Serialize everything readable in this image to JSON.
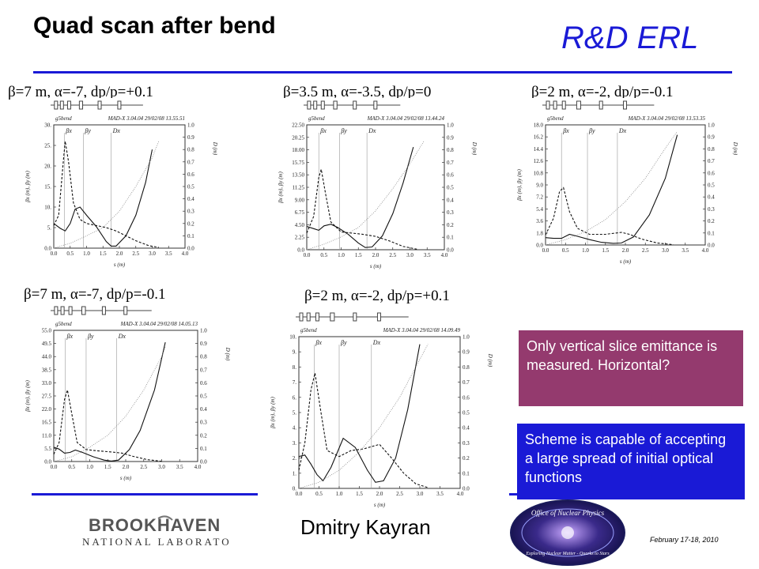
{
  "title": "Quad scan after bend",
  "brand": "R&D ERL",
  "plot_labels": [
    "β=7 m, α=-7, dp/p=+0.1",
    "β=3.5 m, α=-3.5, dp/p=0",
    "β=2 m, α=-2, dp/p=-0.1",
    "β=7 m, α=-7, dp/p=-0.1",
    "β=2 m, α=-2, dp/p=+0.1"
  ],
  "notes": {
    "vertical": "Only vertical slice emittance is measured. Horizontal?",
    "scheme": "Scheme is capable of accepting a large spread of initial optical functions"
  },
  "footer": {
    "author": "Dmitry Kayran",
    "date": "February 17-18, 2010",
    "logo_text": "BROOKHAVEN NATIONAL LABORATORY",
    "seal_text": "Office of Nuclear Physics Exploring Nuclear Matter - Quarks to Stars"
  },
  "colors": {
    "accent": "#1a1ad6",
    "note_purple": "#943a6e",
    "note_blue": "#1a1ad6"
  },
  "chart_data": [
    {
      "type": "line",
      "header_left": "g5bend",
      "header_right": "MAD-X 3.04.04  29/02/08 13.55.51",
      "xlabel": "s (m)",
      "ylabel": "βx (m), βy (m)",
      "ylabel_right": "D (m)",
      "xlim": [
        0.0,
        4.0
      ],
      "ylim": [
        0.0,
        30.0
      ],
      "ylim_right": [
        0.0,
        1.0
      ],
      "x_ticks": [
        "0.0",
        "0.5",
        "1.0",
        "1.5",
        "2.0",
        "2.5",
        "3.0",
        "3.5",
        "4.0"
      ],
      "y_ticks": [
        "0.0",
        "5.",
        "10.",
        "15.",
        "20.",
        "25.",
        "30."
      ],
      "y_ticks_right": [
        "0.0",
        "0.1",
        "0.2",
        "0.3",
        "0.4",
        "0.5",
        "0.6",
        "0.7",
        "0.8",
        "0.9",
        "1.0"
      ],
      "markers": [
        {
          "label": "βx",
          "x": 0.32
        },
        {
          "label": "βy",
          "x": 0.9
        },
        {
          "label": "Dx",
          "x": 1.75
        }
      ],
      "series": [
        {
          "name": "βx",
          "style": "dashed",
          "x": [
            0,
            0.15,
            0.3,
            0.35,
            0.45,
            0.6,
            0.8,
            1.0,
            1.3,
            1.6,
            1.9,
            2.2,
            2.5,
            2.9,
            3.2
          ],
          "y": [
            5.5,
            8,
            22,
            26,
            21,
            11,
            7,
            6,
            5.5,
            5,
            4.2,
            3,
            1.8,
            0.6,
            0.2
          ]
        },
        {
          "name": "βy",
          "style": "solid",
          "x": [
            0,
            0.2,
            0.35,
            0.5,
            0.65,
            0.8,
            1.0,
            1.3,
            1.6,
            1.75,
            1.9,
            2.2,
            2.5,
            2.8,
            3.0
          ],
          "y": [
            6,
            4.8,
            4.2,
            6,
            9.5,
            10,
            8,
            5.2,
            1.6,
            0.5,
            0.5,
            3,
            8,
            16,
            24
          ]
        },
        {
          "name": "Dx",
          "style": "dotted",
          "x": [
            0,
            0.5,
            1.0,
            1.5,
            2.0,
            2.5,
            3.0,
            3.2
          ],
          "y": [
            0,
            1.2,
            3.0,
            5.0,
            9.0,
            15.0,
            22.0,
            26.0
          ]
        }
      ]
    },
    {
      "type": "line",
      "header_left": "g5bend",
      "header_right": "MAD-X 3.04.04  29/02/08 13.44.24",
      "xlabel": "s (m)",
      "ylabel": "βx (m), βy (m)",
      "ylabel_right": "D (m)",
      "xlim": [
        0.0,
        4.0
      ],
      "ylim": [
        0.0,
        22.5
      ],
      "ylim_right": [
        0.0,
        1.0
      ],
      "x_ticks": [
        "0.0",
        "0.5",
        "1.0",
        "1.5",
        "2.0",
        "2.5",
        "3.0",
        "3.5",
        "4.0"
      ],
      "y_ticks": [
        "0.0",
        "2.25",
        "4.50",
        "6.75",
        "9.00",
        "11.25",
        "13.50",
        "15.75",
        "18.00",
        "20.25",
        "22.50"
      ],
      "y_ticks_right": [
        "0.0",
        "0.1",
        "0.2",
        "0.3",
        "0.4",
        "0.5",
        "0.6",
        "0.7",
        "0.8",
        "0.9",
        "1.0"
      ],
      "markers": [
        {
          "label": "βx",
          "x": 0.35
        },
        {
          "label": "βy",
          "x": 0.95
        },
        {
          "label": "Dx",
          "x": 1.75
        }
      ],
      "series": [
        {
          "name": "βx",
          "style": "dashed",
          "x": [
            0,
            0.2,
            0.35,
            0.42,
            0.55,
            0.7,
            1.0,
            1.3,
            1.6,
            2.0,
            2.4,
            2.8,
            3.2
          ],
          "y": [
            3,
            6,
            13,
            14.5,
            10,
            5,
            3.2,
            3,
            2.8,
            2.4,
            1.6,
            0.6,
            0.1
          ]
        },
        {
          "name": "βy",
          "style": "solid",
          "x": [
            0,
            0.2,
            0.35,
            0.5,
            0.7,
            0.9,
            1.2,
            1.5,
            1.7,
            1.9,
            2.2,
            2.5,
            2.8,
            3.1
          ],
          "y": [
            4.2,
            3.8,
            3.5,
            4.3,
            4.6,
            4.0,
            2.8,
            1.2,
            0.4,
            0.5,
            2.5,
            6.5,
            12,
            18.5
          ]
        },
        {
          "name": "Dx",
          "style": "dotted",
          "x": [
            0,
            0.5,
            1.0,
            1.5,
            2.0,
            2.5,
            3.0,
            3.4
          ],
          "y": [
            0,
            1.0,
            2.3,
            4.0,
            7.0,
            11.0,
            15.5,
            19.5
          ]
        }
      ]
    },
    {
      "type": "line",
      "header_left": "g5bend",
      "header_right": "MAD-X 3.04.04  29/02/08 13.53.35",
      "xlabel": "s (m)",
      "ylabel": "βx (m), βy (m)",
      "ylabel_right": "D (m)",
      "xlim": [
        0.0,
        4.0
      ],
      "ylim": [
        0.0,
        18.0
      ],
      "ylim_right": [
        0.0,
        1.0
      ],
      "x_ticks": [
        "0.0",
        "0.5",
        "1.0",
        "1.5",
        "2.0",
        "2.5",
        "3.0",
        "3.5",
        "4.0"
      ],
      "y_ticks": [
        "0.0",
        "1.8",
        "3.6",
        "5.4",
        "7.2",
        "9.0",
        "10.8",
        "12.6",
        "14.4",
        "16.2",
        "18.0"
      ],
      "y_ticks_right": [
        "0.0",
        "0.1",
        "0.2",
        "0.3",
        "0.4",
        "0.5",
        "0.6",
        "0.7",
        "0.8",
        "0.9",
        "1.0"
      ],
      "markers": [
        {
          "label": "βx",
          "x": 0.4
        },
        {
          "label": "βy",
          "x": 1.05
        },
        {
          "label": "Dx",
          "x": 1.8
        }
      ],
      "series": [
        {
          "name": "βx",
          "style": "dashed",
          "x": [
            0,
            0.2,
            0.35,
            0.45,
            0.6,
            0.8,
            1.1,
            1.5,
            1.9,
            2.1,
            2.4,
            2.8,
            3.2
          ],
          "y": [
            1.5,
            4,
            8,
            8.6,
            5,
            2.5,
            1.6,
            1.6,
            1.9,
            1.6,
            0.9,
            0.3,
            0.05
          ]
        },
        {
          "name": "βy",
          "style": "solid",
          "x": [
            0,
            0.2,
            0.4,
            0.6,
            0.8,
            1.1,
            1.4,
            1.7,
            1.9,
            2.2,
            2.6,
            3.0,
            3.3
          ],
          "y": [
            1.1,
            1.0,
            1.0,
            1.6,
            1.3,
            0.8,
            0.4,
            0.25,
            0.3,
            1.2,
            4.5,
            10,
            16.5
          ]
        },
        {
          "name": "Dx",
          "style": "dotted",
          "x": [
            0,
            0.5,
            1.0,
            1.5,
            2.0,
            2.5,
            3.0,
            3.3
          ],
          "y": [
            0,
            0.8,
            2.0,
            3.8,
            6.5,
            10,
            14.5,
            17.0
          ]
        }
      ]
    },
    {
      "type": "line",
      "header_left": "g5bend",
      "header_right": "MAD-X 3.04.04  29/02/08 14.05.13",
      "xlabel": "s (m)",
      "ylabel": "βx (m), βy (m)",
      "ylabel_right": "D (m)",
      "xlim": [
        0.0,
        4.0
      ],
      "ylim": [
        0.0,
        55.0
      ],
      "ylim_right": [
        0.0,
        1.0
      ],
      "x_ticks": [
        "0.0",
        "0.5",
        "1.0",
        "1.5",
        "2.0",
        "2.5",
        "3.0",
        "3.5",
        "4.0"
      ],
      "y_ticks": [
        "0.0",
        "5.5",
        "11.0",
        "16.5",
        "22.0",
        "27.5",
        "33.0",
        "38.5",
        "44.0",
        "49.5",
        "55.0"
      ],
      "y_ticks_right": [
        "0.0",
        "0.1",
        "0.2",
        "0.3",
        "0.4",
        "0.5",
        "0.6",
        "0.7",
        "0.8",
        "0.9",
        "1.0"
      ],
      "markers": [
        {
          "label": "βx",
          "x": 0.32
        },
        {
          "label": "βy",
          "x": 0.9
        },
        {
          "label": "Dx",
          "x": 1.75
        }
      ],
      "series": [
        {
          "name": "βx",
          "style": "dashed",
          "x": [
            0,
            0.15,
            0.3,
            0.38,
            0.5,
            0.65,
            0.9,
            1.2,
            1.6,
            1.9,
            2.2,
            2.6,
            3.0
          ],
          "y": [
            3,
            8,
            26,
            30,
            20,
            8,
            5,
            4.5,
            4,
            3.5,
            2.2,
            0.8,
            0.1
          ]
        },
        {
          "name": "βy",
          "style": "solid",
          "x": [
            0,
            0.15,
            0.3,
            0.45,
            0.6,
            0.8,
            1.1,
            1.4,
            1.6,
            1.8,
            2.1,
            2.4,
            2.8,
            3.1
          ],
          "y": [
            6,
            5.2,
            3.5,
            3.8,
            4.8,
            3.8,
            2.0,
            0.6,
            0.2,
            0.6,
            5,
            13,
            30,
            50
          ]
        },
        {
          "name": "Dx",
          "style": "dotted",
          "x": [
            0,
            0.5,
            1.0,
            1.5,
            2.0,
            2.5,
            3.0,
            3.1
          ],
          "y": [
            0,
            2,
            6,
            11,
            19,
            30,
            44,
            48
          ]
        }
      ]
    },
    {
      "type": "line",
      "header_left": "g5bend",
      "header_right": "MAD-X 3.04.04  29/02/08 14.09.49",
      "xlabel": "s (m)",
      "ylabel": "βx (m), βy (m)",
      "ylabel_right": "D (m)",
      "xlim": [
        0.0,
        4.0
      ],
      "ylim": [
        0.0,
        10.0
      ],
      "ylim_right": [
        0.0,
        1.0
      ],
      "x_ticks": [
        "0.0",
        "0.5",
        "1.0",
        "1.5",
        "2.0",
        "2.5",
        "3.0",
        "3.5",
        "4.0"
      ],
      "y_ticks": [
        "0.",
        "1.",
        "2.",
        "3.",
        "4.",
        "5.",
        "6.",
        "7.",
        "8.",
        "9.",
        "10."
      ],
      "y_ticks_right": [
        "0.0",
        "0.1",
        "0.2",
        "0.3",
        "0.4",
        "0.5",
        "0.6",
        "0.7",
        "0.8",
        "0.9",
        "1.0"
      ],
      "markers": [
        {
          "label": "βx",
          "x": 0.38
        },
        {
          "label": "βy",
          "x": 1.0
        },
        {
          "label": "Dx",
          "x": 1.8
        }
      ],
      "series": [
        {
          "name": "βx",
          "style": "dashed",
          "x": [
            0,
            0.15,
            0.3,
            0.4,
            0.55,
            0.7,
            1.0,
            1.3,
            1.6,
            2.0,
            2.3,
            2.6,
            2.9,
            3.2
          ],
          "y": [
            1.2,
            3,
            6.5,
            7.6,
            5,
            2.5,
            2.1,
            2.5,
            2.6,
            2.9,
            2.0,
            1.0,
            0.3,
            0.05
          ]
        },
        {
          "name": "βy",
          "style": "solid",
          "x": [
            0,
            0.15,
            0.3,
            0.45,
            0.6,
            0.8,
            1.1,
            1.4,
            1.7,
            1.9,
            2.1,
            2.4,
            2.7,
            3.0
          ],
          "y": [
            2.1,
            2.2,
            1.6,
            0.9,
            0.5,
            1.4,
            3.3,
            2.7,
            1.2,
            0.4,
            0.5,
            2.0,
            5.2,
            9.5
          ]
        },
        {
          "name": "Dx",
          "style": "dotted",
          "x": [
            0,
            0.5,
            1.0,
            1.5,
            2.0,
            2.5,
            3.0,
            3.2
          ],
          "y": [
            0,
            0.4,
            1.2,
            2.4,
            4.0,
            6.0,
            8.5,
            9.5
          ]
        }
      ]
    }
  ]
}
